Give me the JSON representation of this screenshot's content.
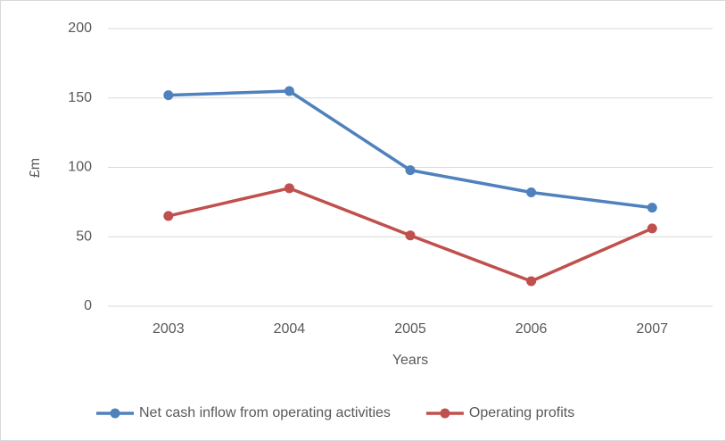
{
  "chart_data": {
    "type": "line",
    "categories": [
      "2003",
      "2004",
      "2005",
      "2006",
      "2007"
    ],
    "series": [
      {
        "name": "Net cash inflow from operating activities",
        "color": "#4f81bd",
        "values": [
          152,
          155,
          98,
          82,
          71
        ]
      },
      {
        "name": "Operating profits",
        "color": "#c0504d",
        "values": [
          65,
          85,
          51,
          18,
          56
        ]
      }
    ],
    "x_label": "Years",
    "y_label": "£m",
    "ylim": [
      0,
      200
    ],
    "yticks": [
      0,
      50,
      100,
      150,
      200
    ],
    "grid": true,
    "legend": "bottom"
  }
}
